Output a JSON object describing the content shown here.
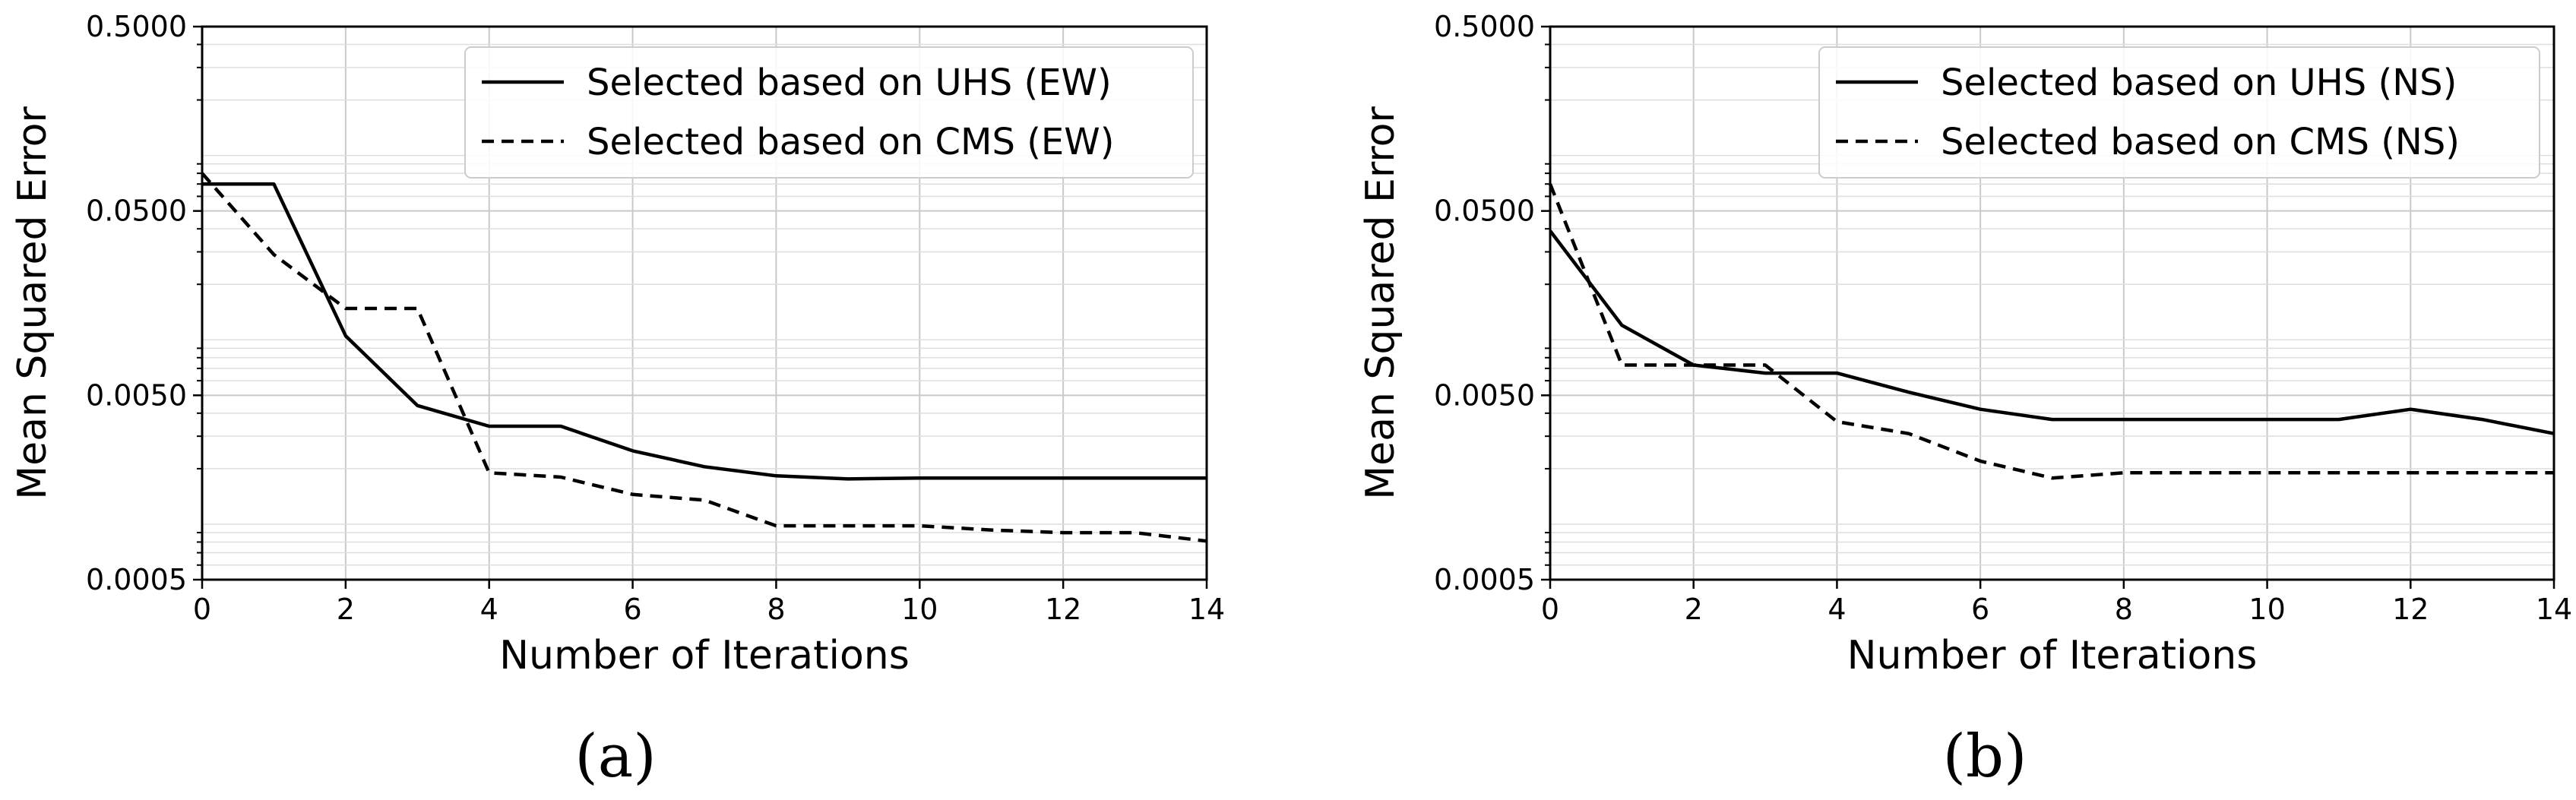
{
  "chart_data": [
    {
      "type": "line",
      "panel_label": "(a)",
      "title": "",
      "xlabel": "Number of Iterations",
      "ylabel": "Mean Squared Error",
      "xlim": [
        0,
        14
      ],
      "ylim": [
        0.0005,
        0.5
      ],
      "yscale": "log",
      "grid": true,
      "legend_placement": "top-right",
      "x_ticks": [
        0,
        2,
        4,
        6,
        8,
        10,
        12,
        14
      ],
      "x_tick_labels": [
        "0",
        "2",
        "4",
        "6",
        "8",
        "10",
        "12",
        "14"
      ],
      "y_ticks": [
        0.0005,
        0.005,
        0.05,
        0.5
      ],
      "y_tick_labels": [
        "0.0005",
        "0.0050",
        "0.0500",
        "0.5000"
      ],
      "series": [
        {
          "name": "Selected based on UHS (EW)",
          "style": "solid",
          "x": [
            0,
            1,
            2,
            3,
            4,
            5,
            6,
            7,
            8,
            9,
            10,
            11,
            12,
            13,
            14
          ],
          "y": [
            0.07,
            0.07,
            0.0105,
            0.0044,
            0.0034,
            0.0034,
            0.0025,
            0.00205,
            0.00183,
            0.00176,
            0.00178,
            0.00178,
            0.00178,
            0.00178,
            0.00178
          ]
        },
        {
          "name": "Selected based on CMS (EW)",
          "style": "dashed",
          "x": [
            0,
            1,
            2,
            3,
            4,
            5,
            6,
            7,
            8,
            9,
            10,
            11,
            12,
            13,
            14
          ],
          "y": [
            0.08,
            0.029,
            0.0148,
            0.0148,
            0.0019,
            0.0018,
            0.00145,
            0.00135,
            0.00098,
            0.00098,
            0.00098,
            0.00093,
            0.0009,
            0.0009,
            0.00081
          ]
        }
      ]
    },
    {
      "type": "line",
      "panel_label": "(b)",
      "title": "",
      "xlabel": "Number of Iterations",
      "ylabel": "Mean Squared Error",
      "xlim": [
        0,
        14
      ],
      "ylim": [
        0.0005,
        0.5
      ],
      "yscale": "log",
      "grid": true,
      "legend_placement": "top-right",
      "x_ticks": [
        0,
        2,
        4,
        6,
        8,
        10,
        12,
        14
      ],
      "x_tick_labels": [
        "0",
        "2",
        "4",
        "6",
        "8",
        "10",
        "12",
        "14"
      ],
      "y_ticks": [
        0.0005,
        0.005,
        0.05,
        0.5
      ],
      "y_tick_labels": [
        "0.0005",
        "0.0050",
        "0.0500",
        "0.5000"
      ],
      "series": [
        {
          "name": "Selected based on UHS (NS)",
          "style": "solid",
          "x": [
            0,
            1,
            2,
            3,
            4,
            5,
            6,
            7,
            8,
            9,
            10,
            11,
            12,
            13,
            14
          ],
          "y": [
            0.039,
            0.012,
            0.0073,
            0.0066,
            0.0066,
            0.0052,
            0.0042,
            0.0037,
            0.0037,
            0.0037,
            0.0037,
            0.0037,
            0.0042,
            0.0037,
            0.0031
          ]
        },
        {
          "name": "Selected based on CMS (NS)",
          "style": "dashed",
          "x": [
            0,
            1,
            2,
            3,
            4,
            5,
            6,
            7,
            8,
            9,
            10,
            11,
            12,
            13,
            14
          ],
          "y": [
            0.07,
            0.0073,
            0.0073,
            0.0073,
            0.0036,
            0.0031,
            0.0022,
            0.00178,
            0.0019,
            0.0019,
            0.0019,
            0.0019,
            0.0019,
            0.0019,
            0.0019
          ]
        }
      ]
    }
  ]
}
